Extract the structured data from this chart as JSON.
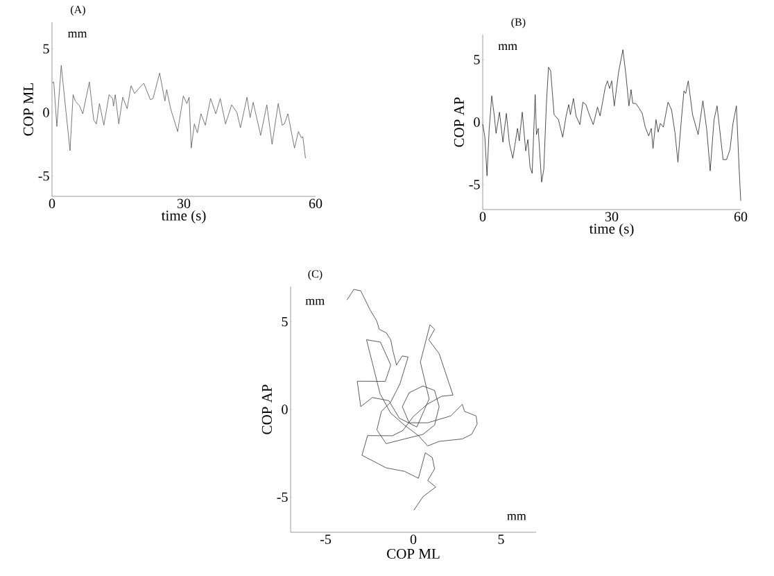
{
  "chart_data": [
    {
      "type": "line",
      "title": "(A)",
      "xlabel": "time (s)",
      "ylabel": "COP ML",
      "annotations": [
        "mm"
      ],
      "xlim": [
        0,
        60
      ],
      "ylim": [
        -6.6,
        7.1
      ],
      "xticks": [
        0,
        30,
        60
      ],
      "yticks": [
        -5,
        0,
        5
      ],
      "series": [
        {
          "color": "#555555",
          "x": [
            0,
            0.4,
            1.1,
            2.1,
            3.2,
            4.1,
            4.8,
            5.3,
            6.3,
            7.0,
            8.5,
            9.5,
            10.1,
            10.8,
            11.8,
            13.0,
            13.8,
            14.0,
            14.4,
            15.2,
            16.1,
            17.1,
            18.0,
            18.8,
            19.8,
            20.9,
            22.4,
            23.0,
            24.5,
            25.7,
            26.1,
            27.0,
            28.6,
            29.9,
            30.7,
            31.2,
            31.7,
            32.4,
            33.1,
            33.9,
            34.9,
            36.1,
            37.3,
            38.3,
            39.5,
            40.9,
            42.1,
            42.9,
            44.4,
            45.1,
            45.8,
            47.5,
            48.9,
            50.1,
            51.5,
            52.4,
            52.9,
            53.7,
            55.2,
            56.1,
            56.8,
            57.1,
            57.7
          ],
          "values": [
            2.3,
            2.4,
            -1.1,
            3.7,
            0,
            -3.0,
            1.4,
            0.9,
            0.5,
            -0.1,
            2.4,
            -0.6,
            -0.9,
            0.7,
            -1.0,
            1.4,
            1.1,
            0.5,
            1.4,
            -0.9,
            1.2,
            0.3,
            2.1,
            1.5,
            1.9,
            2.3,
            1.0,
            1.1,
            3.1,
            0.9,
            1.8,
            0.3,
            -1.5,
            1.3,
            0.7,
            1.2,
            -2.8,
            -0.9,
            -1.6,
            -0.1,
            -1.0,
            1.1,
            -0.1,
            1.1,
            -0.9,
            0.6,
            0,
            -1.2,
            1.2,
            -0.4,
            0.8,
            -1.8,
            0.6,
            -2.5,
            0.7,
            -1.0,
            -0.9,
            -0.1,
            -2.8,
            -1.5,
            -2.0,
            -1.9,
            -3.6
          ]
        }
      ]
    },
    {
      "type": "line",
      "title": "(B)",
      "xlabel": "time (s)",
      "ylabel": "COP AP",
      "annotations": [
        "mm"
      ],
      "xlim": [
        0,
        60
      ],
      "ylim": [
        -7,
        7
      ],
      "xticks": [
        0,
        30,
        60
      ],
      "yticks": [
        -5,
        0,
        5
      ],
      "series": [
        {
          "color": "#222222",
          "x": [
            0,
            0.5,
            1.0,
            1.5,
            2.1,
            2.7,
            3.1,
            3.9,
            4.7,
            5.5,
            6.2,
            7.0,
            7.5,
            8.1,
            8.5,
            9.2,
            10.0,
            10.5,
            11.0,
            11.5,
            12.2,
            12.5,
            12.9,
            13.7,
            14.2,
            14.8,
            15.3,
            15.8,
            16.6,
            17.6,
            18.6,
            19.4,
            20.0,
            20.4,
            21.1,
            21.7,
            22.6,
            23.3,
            24.0,
            24.9,
            25.7,
            26.7,
            27.3,
            28.5,
            29.0,
            29.5,
            30.0,
            30.6,
            31.6,
            32.6,
            33.3,
            34.0,
            34.5,
            34.9,
            35.6,
            36.4,
            37.1,
            37.8,
            38.6,
            39.2,
            39.6,
            40.3,
            40.8,
            41.3,
            42.0,
            43.1,
            43.9,
            44.7,
            45.4,
            46.2,
            46.8,
            47.2,
            47.8,
            48.8,
            50.1,
            51.2,
            52.1,
            52.9,
            53.8,
            54.5,
            55.9,
            56.7,
            57.5,
            58.2,
            59.0,
            59.6,
            60
          ],
          "values": [
            -0.15,
            -1.2,
            -4.3,
            -0.6,
            2.1,
            0.5,
            -0.9,
            0.8,
            -1.6,
            0.7,
            -1.7,
            -2.9,
            -1.8,
            -0.5,
            -1.5,
            0.8,
            -2.3,
            -1.4,
            -3.6,
            -4.1,
            2.2,
            -1.0,
            -0.5,
            -4.8,
            -3.8,
            1.4,
            4.4,
            4.1,
            0.6,
            0.2,
            -1.2,
            0.5,
            1.4,
            0.6,
            1.9,
            0.5,
            -0.2,
            1.6,
            1.4,
            0.5,
            -0.2,
            1.2,
            0.5,
            2.8,
            3.3,
            2.7,
            3.3,
            1.3,
            4.0,
            5.8,
            3.8,
            1.3,
            2.6,
            1.5,
            1.5,
            1.1,
            0.7,
            -0.4,
            -1.1,
            -0.5,
            -2.1,
            0.2,
            -0.8,
            -0.1,
            -0.4,
            1.6,
            1.0,
            -0.8,
            -3.2,
            0.2,
            2.5,
            2.3,
            3.3,
            0.6,
            -1.0,
            1.7,
            -0.6,
            -3.9,
            0.2,
            1.3,
            -3.0,
            -3.0,
            -2.2,
            -0.1,
            1.3,
            -3.5,
            -6.3
          ]
        }
      ]
    },
    {
      "type": "line",
      "title": "(C)",
      "xlabel": "COP ML",
      "ylabel": "COP AP",
      "annotations": [
        "mm",
        "mm"
      ],
      "xlim": [
        -7,
        7
      ],
      "ylim": [
        -7,
        7
      ],
      "xticks": [
        -5,
        0,
        5
      ],
      "yticks": [
        -5,
        0,
        5
      ],
      "series": [
        {
          "color": "#333333",
          "x": [
            -3.79,
            -3.39,
            -3.0,
            -2.47,
            -2.08,
            -1.95,
            -1.55,
            -1.29,
            -1.16,
            -0.96,
            -0.63,
            -0.3,
            -0.76,
            -1.29,
            -1.82,
            -2.08,
            -1.55,
            -0.5,
            0.55,
            1.21,
            1.47,
            1.21,
            0.55,
            -0.24,
            -0.63,
            -0.24,
            0.82,
            2.13,
            2.79,
            2.92,
            3.58,
            3.64,
            3.32,
            2.79,
            1.47,
            0.82,
            0.3,
            -0.5,
            -1.3,
            -1.9,
            -2.67,
            -1.88,
            -1.29,
            -1.6,
            -3.2,
            -3.0,
            -2.34,
            -1.4,
            -0.8,
            0.2,
            0.9,
            0.4,
            0.95,
            1.21,
            0.88,
            1.47,
            2.26,
            1.61,
            0.8,
            0.0,
            -0.6,
            -1.2,
            -2.61,
            -2.93,
            -1.55,
            -0.5,
            0.29,
            0.68,
            1.08,
            1.21,
            0.82,
            1.28,
            0.55,
            0.03
          ],
          "values": [
            6.24,
            6.84,
            6.76,
            5.68,
            5.03,
            4.57,
            4.37,
            3.97,
            3.32,
            2.53,
            3.05,
            2.99,
            1.47,
            0.42,
            -0.11,
            -1.16,
            -1.95,
            -1.68,
            -1.42,
            -0.89,
            0.16,
            1.08,
            1.34,
            0.95,
            0.16,
            -0.76,
            -0.76,
            -0.37,
            0.29,
            -0.11,
            -0.37,
            -0.83,
            -1.42,
            -1.68,
            -1.82,
            -2.08,
            -1.5,
            -0.9,
            -0.2,
            0.9,
            3.97,
            3.84,
            2.53,
            1.6,
            1.61,
            0.16,
            0.68,
            0.5,
            -0.5,
            -1.0,
            0.6,
            2.7,
            4.83,
            4.57,
            3.97,
            3.18,
            0.82,
            0.75,
            0.3,
            -0.4,
            -1.2,
            -1.5,
            -1.49,
            -2.61,
            -3.33,
            -3.53,
            -3.92,
            -2.47,
            -2.74,
            -3.39,
            -4.05,
            -4.42,
            -4.97,
            -5.74
          ]
        }
      ]
    }
  ]
}
